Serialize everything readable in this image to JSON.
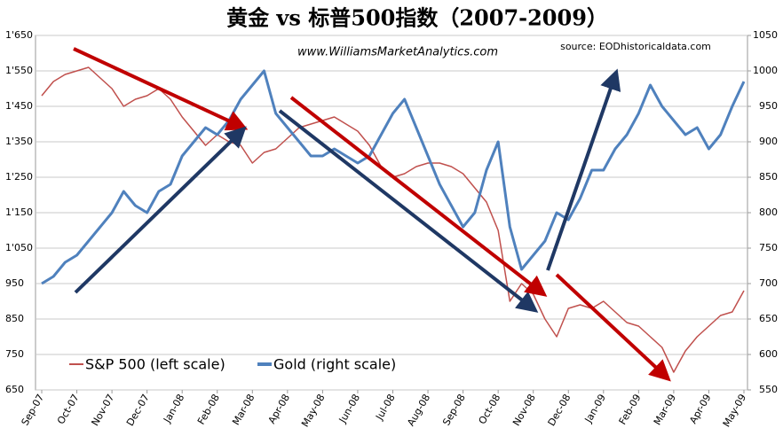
{
  "chart_data": {
    "type": "line",
    "title": "黄金 vs 标普500指数（2007-2009）",
    "subtitle": "www.WilliamsMarketAnalytics.com",
    "source": "source: EODhistoricaldata.com",
    "categories": [
      "Sep-07",
      null,
      null,
      "Oct-07",
      null,
      null,
      "Nov-07",
      null,
      null,
      "Dec-07",
      null,
      null,
      "Jan-08",
      null,
      null,
      "Feb-08",
      null,
      null,
      "Mar-08",
      null,
      null,
      "Apr-08",
      null,
      null,
      "May-08",
      null,
      null,
      "Jun-08",
      null,
      null,
      "Jul-08",
      null,
      null,
      "Aug-08",
      null,
      null,
      "Sep-08",
      null,
      null,
      "Oct-08",
      null,
      null,
      "Nov-08",
      null,
      null,
      "Dec-08",
      null,
      null,
      "Jan-09",
      null,
      null,
      "Feb-09",
      null,
      null,
      "Mar-09",
      null,
      null,
      "Apr-09",
      null,
      null,
      "May-09"
    ],
    "series": [
      {
        "name": "S&P 500 (left scale)",
        "color": "#c0504d",
        "axis": "y",
        "values": [
          1480,
          1520,
          1540,
          1550,
          1560,
          1530,
          1500,
          1450,
          1470,
          1480,
          1500,
          1470,
          1420,
          1380,
          1340,
          1370,
          1350,
          1340,
          1290,
          1320,
          1330,
          1360,
          1390,
          1400,
          1410,
          1420,
          1400,
          1380,
          1340,
          1280,
          1250,
          1260,
          1280,
          1290,
          1290,
          1280,
          1260,
          1220,
          1180,
          1100,
          900,
          950,
          920,
          850,
          800,
          880,
          890,
          880,
          900,
          870,
          840,
          830,
          800,
          770,
          700,
          760,
          800,
          830,
          860,
          870,
          930
        ]
      },
      {
        "name": "Gold (right scale)",
        "color": "#4f81bd",
        "axis": "y2",
        "values": [
          700,
          710,
          730,
          740,
          760,
          780,
          800,
          830,
          810,
          800,
          830,
          840,
          880,
          900,
          920,
          910,
          930,
          960,
          980,
          1000,
          940,
          920,
          900,
          880,
          880,
          890,
          880,
          870,
          880,
          910,
          940,
          960,
          920,
          880,
          840,
          810,
          780,
          800,
          860,
          900,
          780,
          720,
          740,
          760,
          800,
          790,
          820,
          860,
          860,
          890,
          910,
          940,
          980,
          950,
          930,
          910,
          920,
          890,
          910,
          950,
          985
        ]
      }
    ],
    "ylim": [
      650,
      1650
    ],
    "yticks": [
      650,
      750,
      850,
      950,
      {
        "value": 1050,
        "label": "1'050"
      },
      {
        "value": 1150,
        "label": "1'150"
      },
      {
        "value": 1250,
        "label": "1'250"
      },
      {
        "value": 1350,
        "label": "1'350"
      },
      {
        "value": 1450,
        "label": "1'450"
      },
      {
        "value": 1550,
        "label": "1'550"
      },
      {
        "value": 1650,
        "label": "1'650"
      }
    ],
    "y2lim": [
      550,
      1050
    ],
    "y2ticks": [
      550,
      600,
      650,
      700,
      750,
      800,
      850,
      900,
      950,
      1000,
      1050
    ],
    "grid": true
  }
}
